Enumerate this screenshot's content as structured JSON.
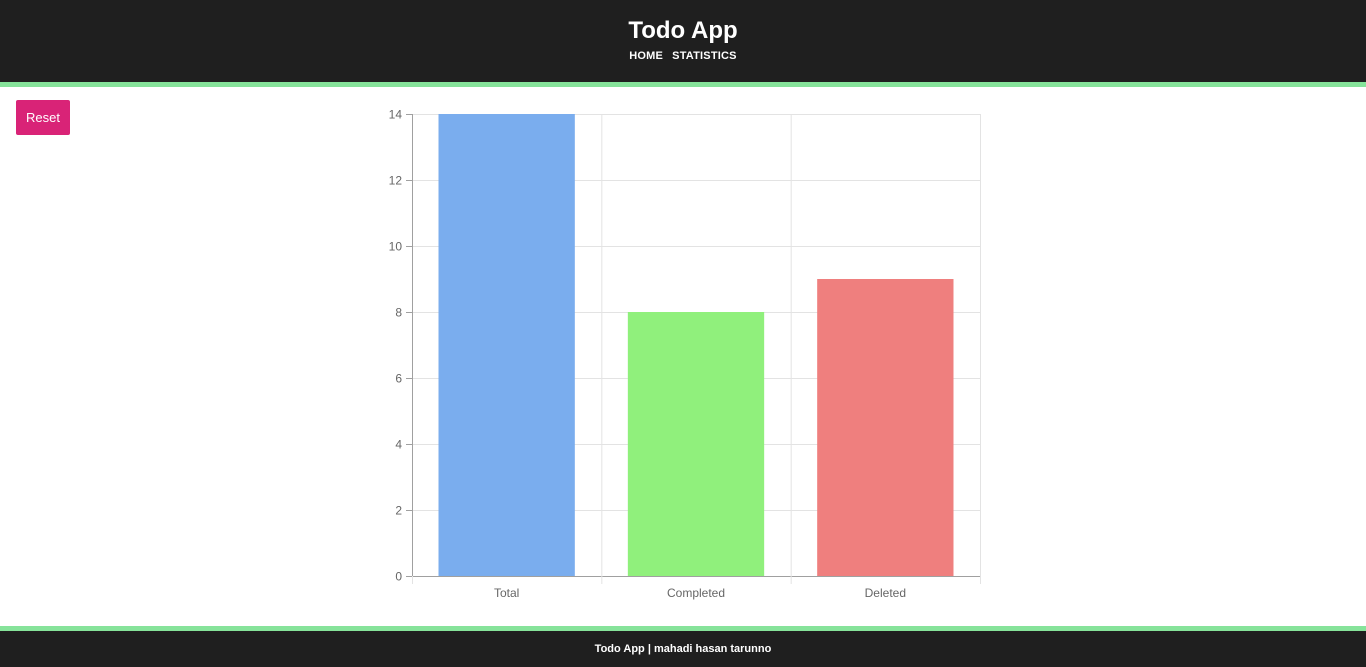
{
  "header": {
    "title": "Todo App",
    "nav": [
      {
        "label": "HOME"
      },
      {
        "label": "STATISTICS"
      }
    ]
  },
  "controls": {
    "reset_label": "Reset"
  },
  "colors": {
    "header_bg": "#1f1f1f",
    "accent_border": "#86e39a",
    "reset_button": "#d92377",
    "bar_total": "#7aadee",
    "bar_completed": "#90f07c",
    "bar_deleted": "#ef7f7e"
  },
  "chart_data": {
    "type": "bar",
    "categories": [
      "Total",
      "Completed",
      "Deleted"
    ],
    "values": [
      14,
      8,
      9
    ],
    "colors": [
      "#7aadee",
      "#90f07c",
      "#ef7f7e"
    ],
    "ylim": [
      0,
      14
    ],
    "yticks": [
      0,
      2,
      4,
      6,
      8,
      10,
      12,
      14
    ],
    "grid": true
  },
  "footer": {
    "text": "Todo App | mahadi hasan tarunno"
  }
}
